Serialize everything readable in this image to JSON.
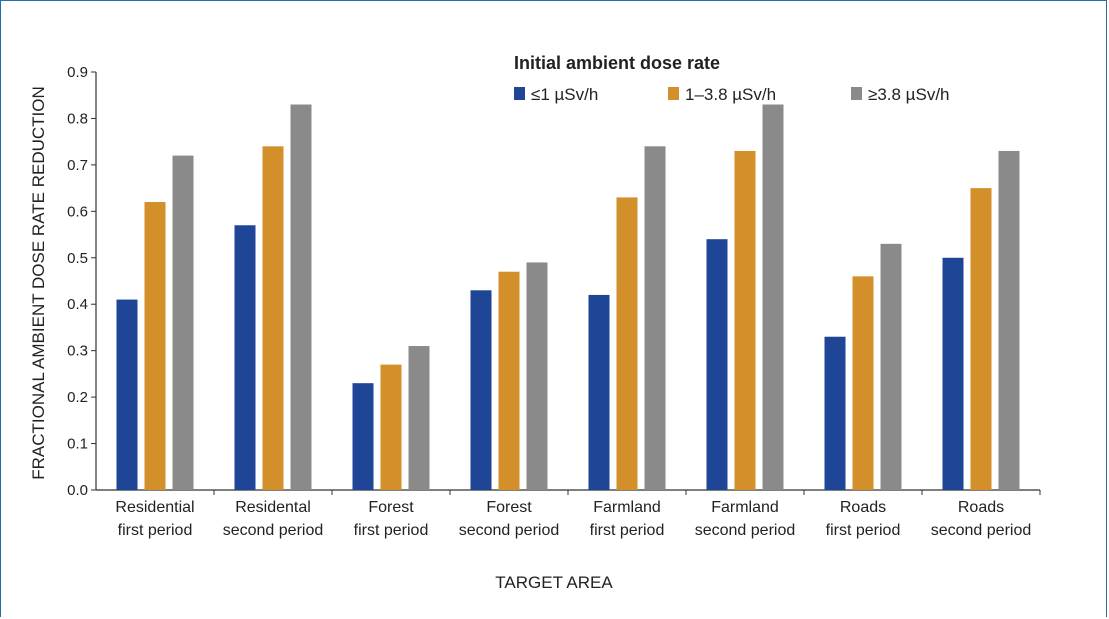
{
  "chart_data": {
    "type": "bar",
    "xlabel": "TARGET AREA",
    "ylabel": "FRACTIONAL AMBIENT DOSE RATE REDUCTION",
    "ylim": [
      0,
      0.9
    ],
    "yticks": [
      "0.0",
      "0.1",
      "0.2",
      "0.3",
      "0.4",
      "0.5",
      "0.6",
      "0.7",
      "0.8",
      "0.9"
    ],
    "categories": [
      [
        "Residential",
        "first period"
      ],
      [
        "Residental",
        "second period"
      ],
      [
        "Forest",
        "first period"
      ],
      [
        "Forest",
        "second period"
      ],
      [
        "Farmland",
        "first period"
      ],
      [
        "Farmland",
        "second period"
      ],
      [
        "Roads",
        "first period"
      ],
      [
        "Roads",
        "second period"
      ]
    ],
    "legend": {
      "title": "Initial ambient dose rate",
      "placement": "top-right"
    },
    "series": [
      {
        "name": "≤1 µSv/h",
        "color": "#1f4597",
        "values": [
          0.41,
          0.57,
          0.23,
          0.43,
          0.42,
          0.54,
          0.33,
          0.5
        ]
      },
      {
        "name": "1–3.8 µSv/h",
        "color": "#d28f2a",
        "values": [
          0.62,
          0.74,
          0.27,
          0.47,
          0.63,
          0.73,
          0.46,
          0.65
        ]
      },
      {
        "name": "≥3.8 µSv/h",
        "color": "#8a8a8a",
        "values": [
          0.72,
          0.83,
          0.31,
          0.49,
          0.74,
          0.83,
          0.53,
          0.73
        ]
      }
    ],
    "grid": false
  }
}
